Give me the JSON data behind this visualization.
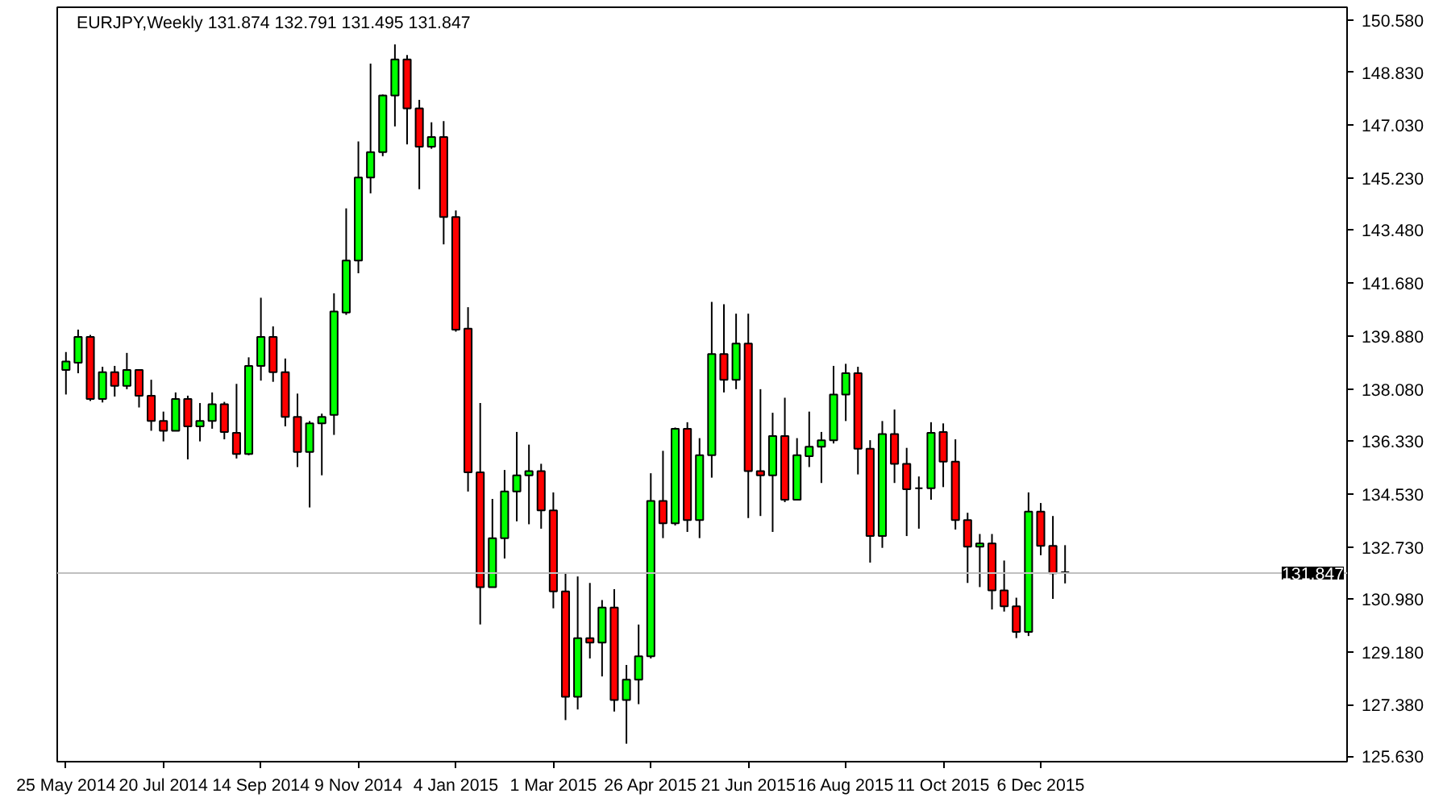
{
  "chart_data": {
    "type": "candlestick",
    "title": "EURJPY,Weekly  131.874 132.791 131.495 131.847",
    "x": [
      "2014-05-25",
      "2014-06-01",
      "2014-06-08",
      "2014-06-15",
      "2014-06-22",
      "2014-06-29",
      "2014-07-06",
      "2014-07-13",
      "2014-07-20",
      "2014-07-27",
      "2014-08-03",
      "2014-08-10",
      "2014-08-17",
      "2014-08-24",
      "2014-08-31",
      "2014-09-07",
      "2014-09-14",
      "2014-09-21",
      "2014-09-28",
      "2014-10-05",
      "2014-10-12",
      "2014-10-19",
      "2014-10-26",
      "2014-11-02",
      "2014-11-09",
      "2014-11-16",
      "2014-11-23",
      "2014-11-30",
      "2014-12-07",
      "2014-12-14",
      "2014-12-21",
      "2014-12-28",
      "2015-01-04",
      "2015-01-11",
      "2015-01-18",
      "2015-01-25",
      "2015-02-01",
      "2015-02-08",
      "2015-02-15",
      "2015-02-22",
      "2015-03-01",
      "2015-03-08",
      "2015-03-15",
      "2015-03-22",
      "2015-03-29",
      "2015-04-05",
      "2015-04-12",
      "2015-04-19",
      "2015-04-26",
      "2015-05-03",
      "2015-05-10",
      "2015-05-17",
      "2015-05-24",
      "2015-05-31",
      "2015-06-07",
      "2015-06-14",
      "2015-06-21",
      "2015-06-28",
      "2015-07-05",
      "2015-07-12",
      "2015-07-19",
      "2015-07-26",
      "2015-08-02",
      "2015-08-09",
      "2015-08-16",
      "2015-08-23",
      "2015-08-30",
      "2015-09-06",
      "2015-09-13",
      "2015-09-20",
      "2015-09-27",
      "2015-10-04",
      "2015-10-11",
      "2015-10-18",
      "2015-10-25",
      "2015-11-01",
      "2015-11-08",
      "2015-11-15",
      "2015-11-22",
      "2015-11-29",
      "2015-12-06",
      "2015-12-13",
      "2015-12-20"
    ],
    "ohlc": [
      [
        138.73,
        139.34,
        137.9,
        139.02
      ],
      [
        138.98,
        140.1,
        138.62,
        139.85
      ],
      [
        139.85,
        139.92,
        137.68,
        137.75
      ],
      [
        137.75,
        138.84,
        137.63,
        138.66
      ],
      [
        138.66,
        138.87,
        137.83,
        138.19
      ],
      [
        138.19,
        139.31,
        138.08,
        138.73
      ],
      [
        138.73,
        138.73,
        137.46,
        137.86
      ],
      [
        137.86,
        138.4,
        136.67,
        137.0
      ],
      [
        137.0,
        137.32,
        136.31,
        136.67
      ],
      [
        136.67,
        137.97,
        136.67,
        137.75
      ],
      [
        137.75,
        137.86,
        135.7,
        136.82
      ],
      [
        136.82,
        137.61,
        136.31,
        137.0
      ],
      [
        137.0,
        137.97,
        136.74,
        137.57
      ],
      [
        137.57,
        137.65,
        136.38,
        136.63
      ],
      [
        136.6,
        138.26,
        135.73,
        135.88
      ],
      [
        135.88,
        139.16,
        135.84,
        138.87
      ],
      [
        138.87,
        141.18,
        138.37,
        139.85
      ],
      [
        139.85,
        140.21,
        138.33,
        138.66
      ],
      [
        138.66,
        139.12,
        136.82,
        137.14
      ],
      [
        137.14,
        137.93,
        135.44,
        135.95
      ],
      [
        135.95,
        137.0,
        134.07,
        136.92
      ],
      [
        136.92,
        137.25,
        135.16,
        137.14
      ],
      [
        137.21,
        141.33,
        136.53,
        140.71
      ],
      [
        140.68,
        144.21,
        140.6,
        142.44
      ],
      [
        142.44,
        146.48,
        142.01,
        145.26
      ],
      [
        145.26,
        149.12,
        144.72,
        146.12
      ],
      [
        146.12,
        148.07,
        145.98,
        148.04
      ],
      [
        148.04,
        149.77,
        146.99,
        149.26
      ],
      [
        149.26,
        149.41,
        146.38,
        147.6
      ],
      [
        147.6,
        147.89,
        144.86,
        146.3
      ],
      [
        146.3,
        147.13,
        146.23,
        146.63
      ],
      [
        146.63,
        147.17,
        142.99,
        143.92
      ],
      [
        143.92,
        144.14,
        140.03,
        140.1
      ],
      [
        140.13,
        140.86,
        134.61,
        135.26
      ],
      [
        135.26,
        137.61,
        130.1,
        131.37
      ],
      [
        131.37,
        134.36,
        131.37,
        133.03
      ],
      [
        133.03,
        135.34,
        132.34,
        134.61
      ],
      [
        134.61,
        136.63,
        133.6,
        135.16
      ],
      [
        135.16,
        136.2,
        133.5,
        135.3
      ],
      [
        135.3,
        135.55,
        133.35,
        133.97
      ],
      [
        133.97,
        134.58,
        130.65,
        131.22
      ],
      [
        131.22,
        131.87,
        126.86,
        127.65
      ],
      [
        127.65,
        131.73,
        127.22,
        129.64
      ],
      [
        129.64,
        131.51,
        128.95,
        129.49
      ],
      [
        129.49,
        130.93,
        128.34,
        130.68
      ],
      [
        130.68,
        131.3,
        127.15,
        127.54
      ],
      [
        127.54,
        128.73,
        126.06,
        128.23
      ],
      [
        128.23,
        130.1,
        127.4,
        129.02
      ],
      [
        129.02,
        135.23,
        128.95,
        134.29
      ],
      [
        134.29,
        135.99,
        133.03,
        133.53
      ],
      [
        133.53,
        136.78,
        133.46,
        136.74
      ],
      [
        136.74,
        136.96,
        133.24,
        133.64
      ],
      [
        133.64,
        136.42,
        133.03,
        135.84
      ],
      [
        135.84,
        141.04,
        135.08,
        139.27
      ],
      [
        139.27,
        140.96,
        137.97,
        138.4
      ],
      [
        138.4,
        140.64,
        138.08,
        139.63
      ],
      [
        139.63,
        140.64,
        133.71,
        135.3
      ],
      [
        135.3,
        138.08,
        133.78,
        135.16
      ],
      [
        135.16,
        137.28,
        133.24,
        136.49
      ],
      [
        136.49,
        137.79,
        134.25,
        134.33
      ],
      [
        134.33,
        136.42,
        134.33,
        135.84
      ],
      [
        135.81,
        137.32,
        135.44,
        136.13
      ],
      [
        136.13,
        136.63,
        134.9,
        136.35
      ],
      [
        136.35,
        138.87,
        136.24,
        137.9
      ],
      [
        137.9,
        138.94,
        137.0,
        138.62
      ],
      [
        138.62,
        138.84,
        135.19,
        136.06
      ],
      [
        136.06,
        136.35,
        132.2,
        133.1
      ],
      [
        133.1,
        137.0,
        132.7,
        136.56
      ],
      [
        136.56,
        137.39,
        134.9,
        135.55
      ],
      [
        135.55,
        136.09,
        133.1,
        134.69
      ],
      [
        134.72,
        135.12,
        133.35,
        134.72
      ],
      [
        134.72,
        136.96,
        134.33,
        136.6
      ],
      [
        136.63,
        136.92,
        134.76,
        135.62
      ],
      [
        135.62,
        136.38,
        133.32,
        133.64
      ],
      [
        133.64,
        133.89,
        131.51,
        132.74
      ],
      [
        132.74,
        133.17,
        131.37,
        132.85
      ],
      [
        132.85,
        133.17,
        130.61,
        131.26
      ],
      [
        131.26,
        132.27,
        130.54,
        130.72
      ],
      [
        130.72,
        131.01,
        129.64,
        129.85
      ],
      [
        129.85,
        134.58,
        129.71,
        133.93
      ],
      [
        133.93,
        134.22,
        132.45,
        132.77
      ],
      [
        132.77,
        133.78,
        130.97,
        131.84
      ],
      [
        131.874,
        132.791,
        131.495,
        131.847
      ]
    ],
    "colors": [
      "#00ff00",
      "#00ff00",
      "#ff0000",
      "#00ff00",
      "#ff0000",
      "#00ff00",
      "#ff0000",
      "#ff0000",
      "#ff0000",
      "#00ff00",
      "#ff0000",
      "#00ff00",
      "#00ff00",
      "#ff0000",
      "#ff0000",
      "#00ff00",
      "#00ff00",
      "#ff0000",
      "#ff0000",
      "#ff0000",
      "#00ff00",
      "#00ff00",
      "#00ff00",
      "#00ff00",
      "#00ff00",
      "#00ff00",
      "#00ff00",
      "#00ff00",
      "#ff0000",
      "#ff0000",
      "#00ff00",
      "#ff0000",
      "#ff0000",
      "#ff0000",
      "#ff0000",
      "#00ff00",
      "#00ff00",
      "#00ff00",
      "#00ff00",
      "#ff0000",
      "#ff0000",
      "#ff0000",
      "#00ff00",
      "#ff0000",
      "#00ff00",
      "#ff0000",
      "#00ff00",
      "#00ff00",
      "#00ff00",
      "#ff0000",
      "#00ff00",
      "#ff0000",
      "#00ff00",
      "#00ff00",
      "#ff0000",
      "#00ff00",
      "#ff0000",
      "#ff0000",
      "#00ff00",
      "#ff0000",
      "#00ff00",
      "#00ff00",
      "#00ff00",
      "#00ff00",
      "#00ff00",
      "#ff0000",
      "#ff0000",
      "#00ff00",
      "#ff0000",
      "#ff0000",
      "#000000",
      "#00ff00",
      "#ff0000",
      "#ff0000",
      "#ff0000",
      "#00ff00",
      "#ff0000",
      "#ff0000",
      "#ff0000",
      "#00ff00",
      "#ff0000",
      "#ff0000",
      "#ff0000"
    ],
    "xlim": [
      "2014-05-20",
      "2016-05-30"
    ],
    "xticks": [
      {
        "value": "2014-05-25",
        "label": "25 May 2014"
      },
      {
        "value": "2014-07-20",
        "label": "20 Jul 2014"
      },
      {
        "value": "2014-09-14",
        "label": "14 Sep 2014"
      },
      {
        "value": "2014-11-09",
        "label": "9 Nov 2014"
      },
      {
        "value": "2015-01-04",
        "label": "4 Jan 2015"
      },
      {
        "value": "2015-03-01",
        "label": "1 Mar 2015"
      },
      {
        "value": "2015-04-26",
        "label": "26 Apr 2015"
      },
      {
        "value": "2015-06-21",
        "label": "21 Jun 2015"
      },
      {
        "value": "2015-08-16",
        "label": "16 Aug 2015"
      },
      {
        "value": "2015-10-11",
        "label": "11 Oct 2015"
      },
      {
        "value": "2015-12-06",
        "label": "6 Dec 2015"
      }
    ],
    "ylim": [
      125.45,
      151.03
    ],
    "yticks": [
      {
        "value": 150.58,
        "label": "150.580"
      },
      {
        "value": 148.83,
        "label": "148.830"
      },
      {
        "value": 147.03,
        "label": "147.030"
      },
      {
        "value": 145.23,
        "label": "145.230"
      },
      {
        "value": 143.48,
        "label": "143.480"
      },
      {
        "value": 141.68,
        "label": "141.680"
      },
      {
        "value": 139.88,
        "label": "139.880"
      },
      {
        "value": 138.08,
        "label": "138.080"
      },
      {
        "value": 136.33,
        "label": "136.330"
      },
      {
        "value": 134.53,
        "label": "134.530"
      },
      {
        "value": 132.73,
        "label": "132.730"
      },
      {
        "value": 130.98,
        "label": "130.980"
      },
      {
        "value": 129.18,
        "label": "129.180"
      },
      {
        "value": 127.38,
        "label": "127.380"
      },
      {
        "value": 125.63,
        "label": "125.630"
      }
    ],
    "ref_lines": [
      {
        "axis": "y",
        "value": 131.847,
        "label": "131.847",
        "color": "#c0c0c0"
      }
    ],
    "grid": false
  }
}
